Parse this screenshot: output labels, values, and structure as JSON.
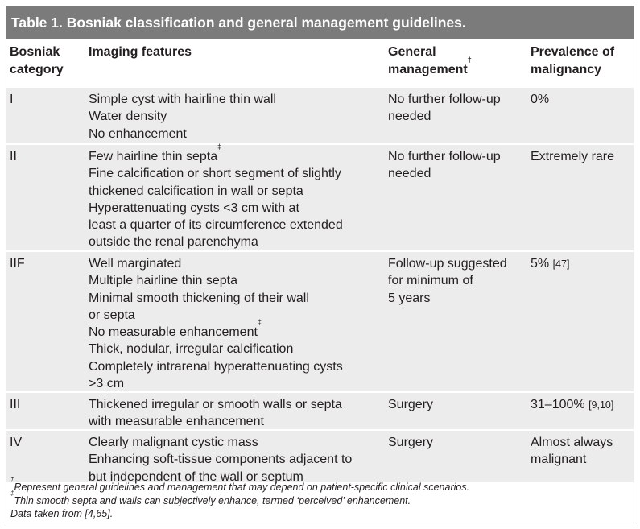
{
  "table": {
    "title": "Table 1. Bosniak classification and general management guidelines.",
    "headers": {
      "category_line1": "Bosniak",
      "category_line2": "category",
      "features": "Imaging features",
      "management_line1": "General",
      "management_line2": "management",
      "management_mark": "†",
      "prevalence_line1": "Prevalence of",
      "prevalence_line2": "malignancy"
    },
    "rows": [
      {
        "category": "I",
        "features": [
          "Simple cyst with hairline thin wall",
          "Water density",
          "No enhancement"
        ],
        "management": [
          "No further follow-up",
          "needed"
        ],
        "prevalence": "0%",
        "prevalence_ref": ""
      },
      {
        "category": "II",
        "features": [
          "Few hairline thin septa",
          "Fine calcification or short segment of slightly",
          "thickened calcification in wall or septa",
          "Hyperattenuating cysts <3 cm with at",
          "least a quarter of its circumference extended",
          "outside the renal parenchyma"
        ],
        "feature_mark": "‡",
        "management": [
          "No further follow-up",
          "needed"
        ],
        "prevalence": "Extremely rare",
        "prevalence_ref": ""
      },
      {
        "category": "IIF",
        "features": [
          "Well marginated",
          "Multiple hairline thin septa",
          "Minimal smooth thickening of their wall",
          "or septa",
          "No measurable enhancement",
          "Thick, nodular, irregular calcification",
          "Completely intrarenal hyperattenuating cysts",
          ">3 cm"
        ],
        "feature_mark": "‡",
        "management": [
          "Follow-up suggested",
          "for minimum of",
          "5 years"
        ],
        "prevalence": "5%",
        "prevalence_ref": "[47]"
      },
      {
        "category": "III",
        "features": [
          "Thickened irregular or smooth walls or septa",
          "with measurable enhancement"
        ],
        "management": [
          "Surgery"
        ],
        "prevalence": "31–100%",
        "prevalence_ref": "[9,10]"
      },
      {
        "category": "IV",
        "features": [
          "Clearly malignant cystic mass",
          "Enhancing soft-tissue components adjacent to",
          "but independent of the wall or septum"
        ],
        "management": [
          "Surgery"
        ],
        "prevalence": "Almost always",
        "prevalence_line2": "malignant",
        "prevalence_ref": ""
      }
    ],
    "footnotes": {
      "dagger_mark": "†",
      "dagger_text": "Represent general guidelines and management that may depend on patient-specific clinical scenarios.",
      "ddagger_mark": "‡",
      "ddagger_text": "Thin smooth septa and walls can subjectively enhance, termed ‘perceived’ enhancement.",
      "source_prefix": "Data taken from ",
      "source_refs": "[4,65]",
      "source_suffix": "."
    }
  }
}
